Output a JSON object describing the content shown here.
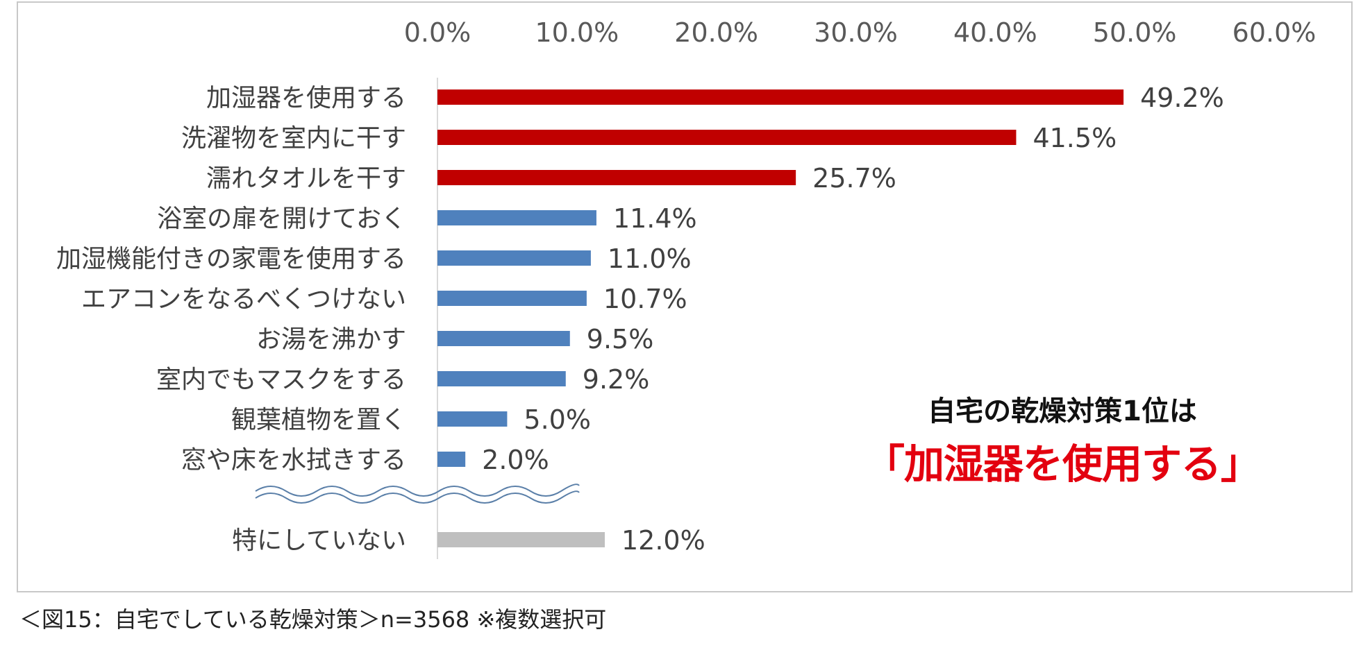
{
  "chart_data": {
    "type": "bar",
    "orientation": "horizontal",
    "xlim": [
      0,
      60
    ],
    "x_ticks": [
      "0.0%",
      "10.0%",
      "20.0%",
      "30.0%",
      "40.0%",
      "50.0%",
      "60.0%"
    ],
    "x_tick_values": [
      0,
      10,
      20,
      30,
      40,
      50,
      60
    ],
    "axis_position": "top",
    "grid": false,
    "categories": [
      "加湿器を使用する",
      "洗濯物を室内に干す",
      "濡れタオルを干す",
      "浴室の扉を開けておく",
      "加湿機能付きの家電を使用する",
      "エアコンをなるべくつけない",
      "お湯を沸かす",
      "室内でもマスクをする",
      "観葉植物を置く",
      "窓や床を水拭きする",
      "特にしていない"
    ],
    "values": [
      49.2,
      41.5,
      25.7,
      11.4,
      11.0,
      10.7,
      9.5,
      9.2,
      5.0,
      2.0,
      12.0
    ],
    "data_labels": [
      "49.2%",
      "41.5%",
      "25.7%",
      "11.4%",
      "11.0%",
      "10.7%",
      "9.5%",
      "9.2%",
      "5.0%",
      "2.0%",
      "12.0%"
    ],
    "bar_colors": [
      "#c00000",
      "#c00000",
      "#c00000",
      "#4f81bd",
      "#4f81bd",
      "#4f81bd",
      "#4f81bd",
      "#4f81bd",
      "#4f81bd",
      "#4f81bd",
      "#bfbfbf"
    ],
    "axis_break_before_last": true
  },
  "annotation": {
    "line1": "自宅の乾燥対策1位は",
    "line2": "「加湿器を使用する」",
    "line2_color": "#e3000f"
  },
  "caption": "＜図15：自宅でしている乾燥対策＞n=3568 ※複数選択可"
}
